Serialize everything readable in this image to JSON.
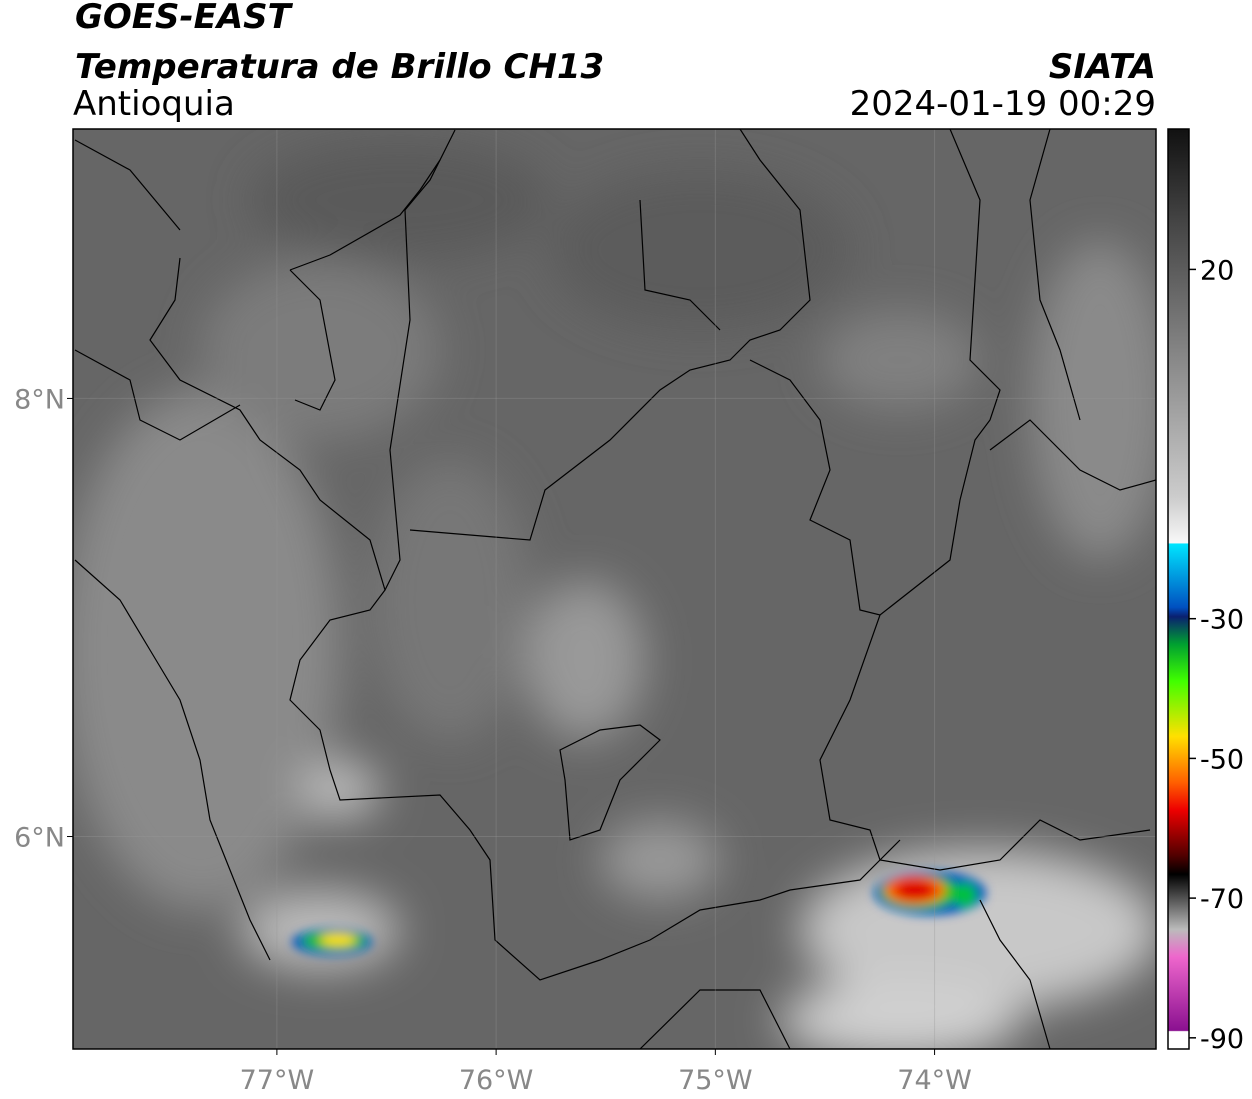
{
  "header": {
    "title": "GOES-EAST",
    "subtitle": "Temperatura de Brillo CH13",
    "region": "Antioquia",
    "source": "SIATA",
    "datetime": "2024-01-19 00:29"
  },
  "map": {
    "xlim": [
      -77.93,
      -72.99
    ],
    "ylim": [
      5.03,
      9.23
    ],
    "xticks": [
      {
        "value": -77,
        "label": "77°W"
      },
      {
        "value": -76,
        "label": "76°W"
      },
      {
        "value": -75,
        "label": "75°W"
      },
      {
        "value": -74,
        "label": "74°W"
      }
    ],
    "yticks": [
      {
        "value": 6,
        "label": "6°N"
      },
      {
        "value": 8,
        "label": "8°N"
      }
    ],
    "grid": true
  },
  "colorbar": {
    "lim": [
      -91.6,
      40.1
    ],
    "ticks": [
      20,
      -30,
      -50,
      -70,
      -90
    ]
  }
}
